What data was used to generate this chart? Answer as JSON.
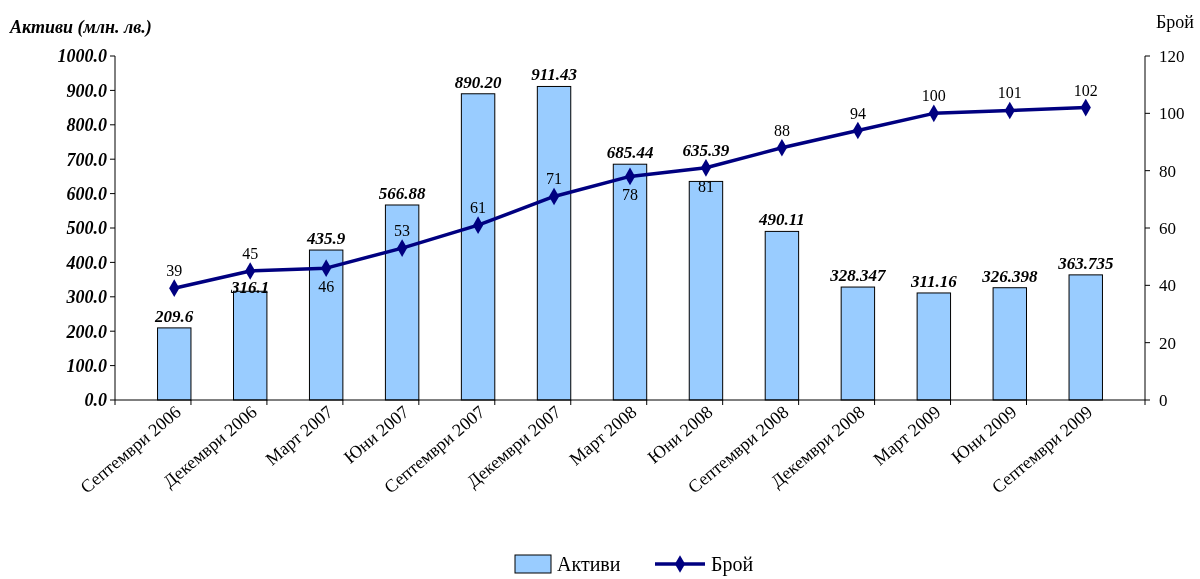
{
  "chart_data": {
    "type": "bar",
    "ylabel": "Активи (млн. лв.)",
    "y2label": "Брой",
    "categories": [
      "Септември 2006",
      "Декември 2006",
      "Март 2007",
      "Юни 2007",
      "Септември 2007",
      "Декември 2007",
      "Март 2008",
      "Юни 2008",
      "Септември 2008",
      "Декември 2008",
      "Март 2009",
      "Юни 2009",
      "Септември 2009"
    ],
    "series": [
      {
        "name": "Активи",
        "color": "#99ccff",
        "values": [
          209.6,
          316.1,
          435.9,
          566.88,
          890.2,
          911.43,
          685.44,
          635.39,
          490.11,
          328.347,
          311.16,
          326.398,
          363.735
        ],
        "value_labels": [
          "209.6",
          "316.1",
          "435.9",
          "566.88",
          "890.20",
          "911.43",
          "685.44",
          "635.39",
          "490.11",
          "328.347",
          "311.16",
          "326.398",
          "363.735"
        ]
      },
      {
        "name": "Брой",
        "type": "line",
        "axis": "y2",
        "color": "#000080",
        "marker": "diamond",
        "values": [
          39,
          45,
          46,
          53,
          61,
          71,
          78,
          81,
          88,
          94,
          100,
          101,
          102
        ],
        "value_labels": [
          "39",
          "45",
          "46",
          "53",
          "61",
          "71",
          "78",
          "81",
          "88",
          "94",
          "100",
          "101",
          "102"
        ]
      }
    ],
    "ylim": [
      0,
      1000
    ],
    "yticks": [
      {
        "value": 0,
        "label": "0.0"
      },
      {
        "value": 100,
        "label": "100.0"
      },
      {
        "value": 200,
        "label": "200.0"
      },
      {
        "value": 300,
        "label": "300.0"
      },
      {
        "value": 400,
        "label": "400.0"
      },
      {
        "value": 500,
        "label": "500.0"
      },
      {
        "value": 600,
        "label": "600.0"
      },
      {
        "value": 700,
        "label": "700.0"
      },
      {
        "value": 800,
        "label": "800.0"
      },
      {
        "value": 900,
        "label": "900.0"
      },
      {
        "value": 1000,
        "label": "1000.0"
      }
    ],
    "y2lim": [
      0,
      120
    ],
    "y2ticks": [
      0,
      20,
      40,
      60,
      80,
      100,
      120
    ],
    "legend": "bottom"
  }
}
